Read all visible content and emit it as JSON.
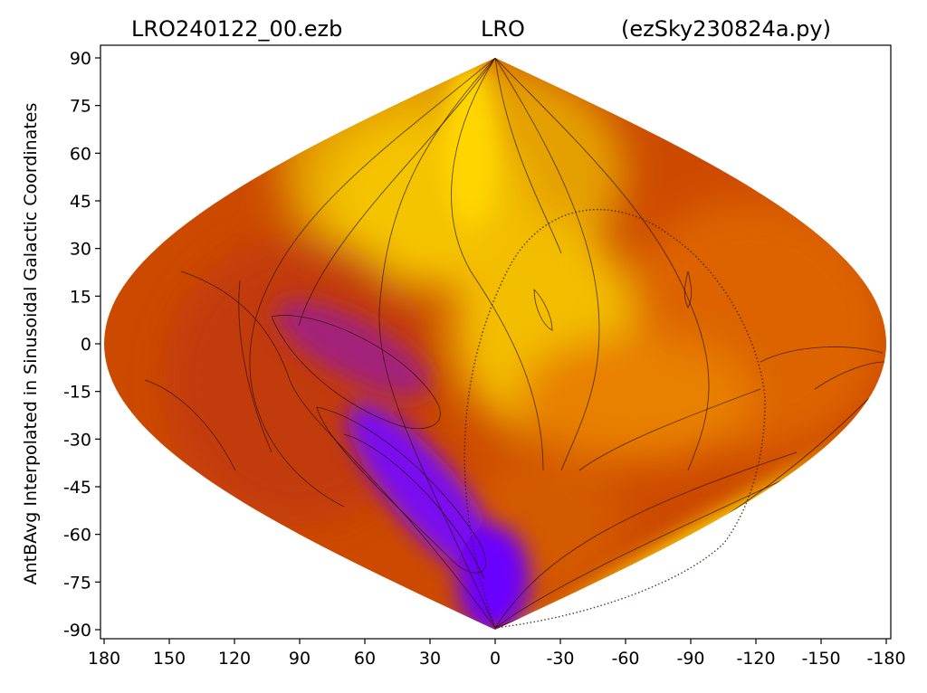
{
  "chart_data": {
    "type": "heatmap",
    "projection": "sinusoidal",
    "title": {
      "left": "LRO240122_00.ezb",
      "center": "LRO",
      "right": "(ezSky230824a.py)"
    },
    "xlabel": "",
    "ylabel": "AntBAvg Interpolated in Sinusoidal Galactic Coordinates",
    "xlim": [
      180,
      -180
    ],
    "ylim": [
      -90,
      90
    ],
    "x_ticks": [
      180,
      150,
      120,
      90,
      60,
      30,
      0,
      -30,
      -60,
      -90,
      -120,
      -150,
      -180
    ],
    "x_tick_labels": [
      "180",
      "150",
      "120",
      "90",
      "60",
      "30",
      "0",
      "-30",
      "-60",
      "-90",
      "-120",
      "-150",
      "-180"
    ],
    "y_ticks": [
      90,
      75,
      60,
      45,
      30,
      15,
      0,
      -15,
      -30,
      -45,
      -60,
      -75,
      -90
    ],
    "y_tick_labels": [
      "90",
      "75",
      "60",
      "45",
      "30",
      "15",
      "0",
      "-15",
      "-30",
      "-45",
      "-60",
      "-75",
      "-90"
    ],
    "grid": false,
    "colormap": [
      "#7a00ff",
      "#a02090",
      "#c23208",
      "#e06a00",
      "#f2a000",
      "#f5c800",
      "#ffe000"
    ],
    "features": [
      {
        "name": "high-region-north",
        "lon": 30,
        "lat": 50,
        "level": 0.9
      },
      {
        "name": "high-region-center",
        "lon": -15,
        "lat": 10,
        "level": 0.85
      },
      {
        "name": "high-band-southeast",
        "lon": -100,
        "lat": -55,
        "level": 0.95
      },
      {
        "name": "low-region-west",
        "lon": 90,
        "lat": 5,
        "level": 0.2
      },
      {
        "name": "lowest-region-south",
        "lon": 40,
        "lat": -50,
        "level": 0.0
      }
    ],
    "overlay_curve": "dotted great-circle (celestial equator) from south pole through lon -45, lat 40"
  }
}
